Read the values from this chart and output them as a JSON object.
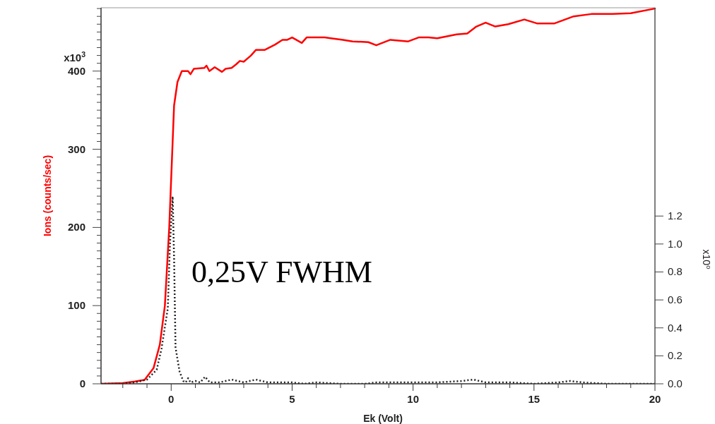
{
  "chart_data": {
    "type": "line",
    "xlabel": "Ek (Volt)",
    "ylabel": "Ions (counts/sec)",
    "y2label": "x10⁰",
    "annotations": [
      "x10$^{3}$",
      "0,25V FWHM"
    ],
    "xlim": [
      -2.9,
      20
    ],
    "xticks": [
      {
        "value": -2,
        "label": null
      },
      {
        "value": -1,
        "label": null
      },
      0,
      {
        "value": 1,
        "label": null
      },
      {
        "value": 2,
        "label": null
      },
      {
        "value": 3,
        "label": null
      },
      {
        "value": 4,
        "label": null
      },
      5,
      {
        "value": 6,
        "label": null
      },
      {
        "value": 7,
        "label": null
      },
      {
        "value": 8,
        "label": null
      },
      {
        "value": 9,
        "label": null
      },
      10,
      {
        "value": 11,
        "label": null
      },
      {
        "value": 12,
        "label": null
      },
      {
        "value": 13,
        "label": null
      },
      {
        "value": 14,
        "label": null
      },
      15,
      {
        "value": 16,
        "label": null
      },
      {
        "value": 17,
        "label": null
      },
      {
        "value": 18,
        "label": null
      },
      {
        "value": 19,
        "label": null
      },
      20
    ],
    "ylim": [
      0,
      481
    ],
    "yticks": [
      0,
      {
        "value": 10,
        "label": null
      },
      {
        "value": 20,
        "label": null
      },
      {
        "value": 30,
        "label": null
      },
      {
        "value": 40,
        "label": null
      },
      {
        "value": 50,
        "label": null
      },
      {
        "value": 60,
        "label": null
      },
      {
        "value": 70,
        "label": null
      },
      {
        "value": 80,
        "label": null
      },
      {
        "value": 90,
        "label": null
      },
      100,
      {
        "value": 110,
        "label": null
      },
      {
        "value": 120,
        "label": null
      },
      {
        "value": 130,
        "label": null
      },
      {
        "value": 140,
        "label": null
      },
      {
        "value": 150,
        "label": null
      },
      {
        "value": 160,
        "label": null
      },
      {
        "value": 170,
        "label": null
      },
      {
        "value": 180,
        "label": null
      },
      {
        "value": 190,
        "label": null
      },
      200,
      {
        "value": 210,
        "label": null
      },
      {
        "value": 220,
        "label": null
      },
      {
        "value": 230,
        "label": null
      },
      {
        "value": 240,
        "label": null
      },
      {
        "value": 250,
        "label": null
      },
      {
        "value": 260,
        "label": null
      },
      {
        "value": 270,
        "label": null
      },
      {
        "value": 280,
        "label": null
      },
      {
        "value": 290,
        "label": null
      },
      300,
      {
        "value": 310,
        "label": null
      },
      {
        "value": 320,
        "label": null
      },
      {
        "value": 330,
        "label": null
      },
      {
        "value": 340,
        "label": null
      },
      {
        "value": 350,
        "label": null
      },
      {
        "value": 360,
        "label": null
      },
      {
        "value": 370,
        "label": null
      },
      {
        "value": 380,
        "label": null
      },
      {
        "value": 390,
        "label": null
      },
      400,
      {
        "value": 410,
        "label": null
      },
      {
        "value": 420,
        "label": null
      },
      {
        "value": 430,
        "label": null
      },
      {
        "value": 440,
        "label": null
      },
      {
        "value": 450,
        "label": null
      },
      {
        "value": 460,
        "label": null
      },
      {
        "value": 470,
        "label": null
      },
      {
        "value": 480,
        "label": null
      }
    ],
    "y2lim": [
      0,
      2.69
    ],
    "y2ticks": [
      {
        "value": 0,
        "label": "0.0"
      },
      {
        "value": 0.2,
        "label": "0.2"
      },
      {
        "value": 0.4,
        "label": "0.4"
      },
      {
        "value": 0.6,
        "label": "0.6"
      },
      {
        "value": 0.8,
        "label": "0.8"
      },
      {
        "value": 1,
        "label": "1.0"
      },
      {
        "value": 1.2,
        "label": "1.2"
      }
    ],
    "series": [
      {
        "color": "#ff0000",
        "line_style": "solid",
        "x": [
          -2.9,
          -2,
          -1.5,
          -1.1,
          -0.73,
          -0.47,
          -0.26,
          -0.08,
          0.12,
          0.26,
          0.44,
          0.7,
          0.8,
          0.94,
          1.37,
          1.46,
          1.58,
          1.8,
          2.1,
          2.25,
          2.5,
          2.7,
          2.84,
          3.0,
          3.3,
          3.5,
          3.86,
          4.3,
          4.6,
          4.8,
          5.0,
          5.4,
          5.6,
          6.35,
          6.6,
          7.1,
          7.5,
          8.15,
          8.48,
          9.06,
          9.8,
          10.23,
          10.64,
          11.0,
          11.8,
          12.24,
          12.62,
          13.0,
          13.4,
          13.94,
          14.6,
          15.12,
          15.85,
          16.64,
          17.37,
          18.25,
          19.0,
          20
        ],
        "values": [
          0,
          1,
          3,
          5,
          20,
          50,
          100,
          200,
          356,
          386,
          400,
          400,
          396,
          403,
          404,
          407,
          400,
          405,
          399,
          403,
          404,
          409,
          413,
          412,
          420,
          427,
          427,
          434,
          440,
          440,
          443,
          436,
          443,
          443,
          442,
          440,
          438,
          437,
          433,
          440,
          438,
          443,
          443,
          442,
          447,
          448,
          457,
          462,
          457,
          460,
          466,
          461,
          461,
          470,
          473,
          473,
          474,
          480
        ]
      },
      {
        "color": "#222222",
        "line_style": "dotted",
        "axis": "y2",
        "x": [
          -2.9,
          -2,
          -1.5,
          -1,
          -0.6,
          -0.4,
          -0.14,
          -0.05,
          0.06,
          0.12,
          0.18,
          0.35,
          0.5,
          0.6,
          0.7,
          0.8,
          1.0,
          1.2,
          1.4,
          1.6,
          2.0,
          2.5,
          3.0,
          3.5,
          4.0,
          5.0,
          5.5,
          6.0,
          7,
          8,
          8.5,
          9,
          10,
          11,
          12,
          12.5,
          13,
          14,
          15,
          16,
          16.5,
          17,
          18,
          19,
          20
        ],
        "values": [
          0,
          0,
          0.01,
          0.03,
          0.1,
          0.25,
          0.54,
          1.0,
          1.34,
          0.9,
          0.26,
          0.085,
          0.02,
          0.01,
          0.04,
          0.01,
          0.02,
          0.01,
          0.05,
          0.01,
          0.01,
          0.03,
          0.01,
          0.03,
          0.01,
          0.01,
          0,
          0.01,
          0,
          0,
          0.01,
          0.01,
          0.01,
          0.01,
          0.02,
          0.03,
          0.01,
          0.01,
          0,
          0.01,
          0.02,
          0.01,
          0,
          0,
          0
        ]
      }
    ]
  }
}
